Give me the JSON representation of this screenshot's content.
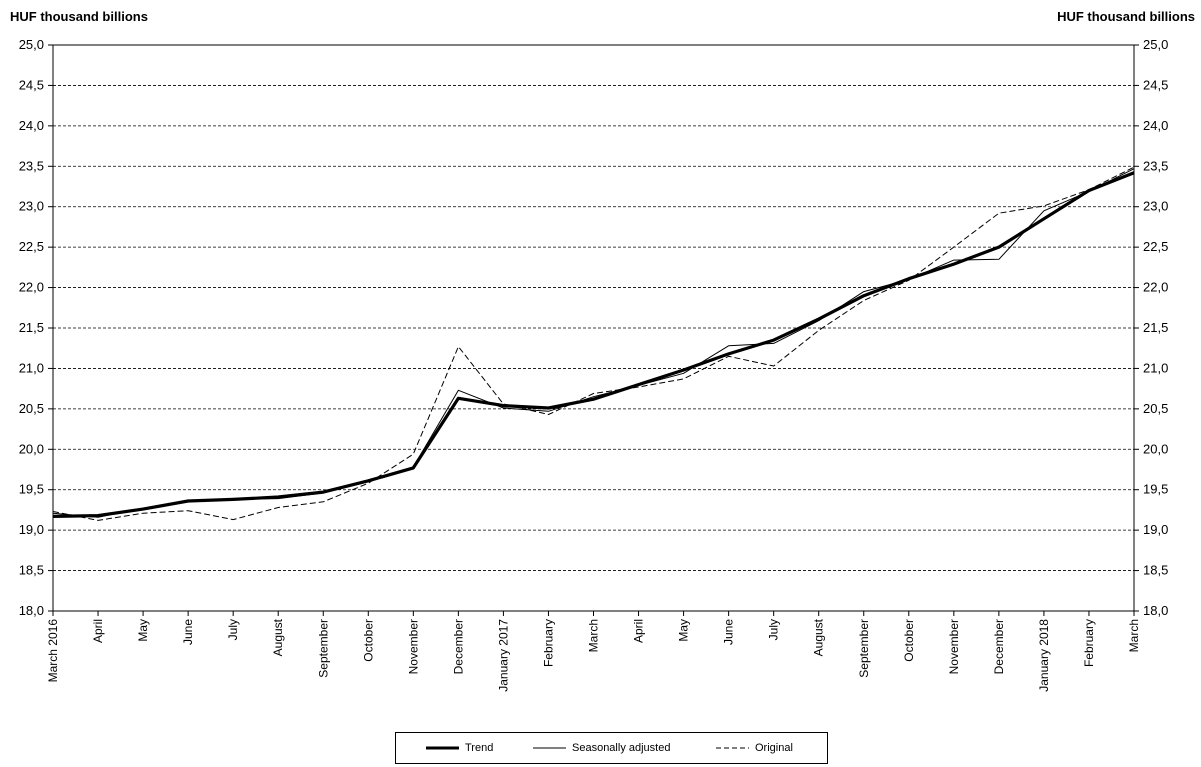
{
  "chart_data": {
    "type": "line",
    "ylabel_left": "HUF thousand billions",
    "ylabel_right": "HUF thousand billions",
    "ylim": [
      18.0,
      25.0
    ],
    "yticks": [
      "18,0",
      "18,5",
      "19,0",
      "19,5",
      "20,0",
      "20,5",
      "21,0",
      "21,5",
      "22,0",
      "22,5",
      "23,0",
      "23,5",
      "24,0",
      "24,5",
      "25,0"
    ],
    "grid": "horizontal-dashed",
    "legend_position": "bottom",
    "categories": [
      "March 2016",
      "April",
      "May",
      "June",
      "July",
      "August",
      "September",
      "October",
      "November",
      "December",
      "January 2017",
      "February",
      "March",
      "April",
      "May",
      "June",
      "July",
      "August",
      "September",
      "October",
      "November",
      "December",
      "January 2018",
      "February",
      "March"
    ],
    "series": [
      {
        "name": "Trend",
        "style": "thick",
        "values": [
          19.17,
          19.18,
          19.26,
          19.36,
          19.38,
          19.41,
          19.47,
          19.61,
          19.77,
          20.63,
          20.54,
          20.51,
          20.62,
          20.8,
          20.98,
          21.18,
          21.35,
          21.61,
          21.9,
          22.11,
          22.29,
          22.5,
          22.85,
          23.2,
          23.42
        ]
      },
      {
        "name": "Seasonally adjusted",
        "style": "thin",
        "values": [
          19.21,
          19.16,
          19.27,
          19.37,
          19.38,
          19.39,
          19.46,
          19.62,
          19.78,
          20.73,
          20.51,
          20.47,
          20.65,
          20.79,
          20.94,
          21.28,
          21.31,
          21.59,
          21.95,
          22.1,
          22.34,
          22.35,
          22.95,
          23.19,
          23.47
        ]
      },
      {
        "name": "Original",
        "style": "dashed",
        "values": [
          19.23,
          19.12,
          19.21,
          19.24,
          19.13,
          19.28,
          19.35,
          19.58,
          19.94,
          21.27,
          20.56,
          20.43,
          20.69,
          20.77,
          20.87,
          21.15,
          21.03,
          21.47,
          21.84,
          22.09,
          22.5,
          22.92,
          23.01,
          23.21,
          23.49
        ]
      }
    ]
  }
}
